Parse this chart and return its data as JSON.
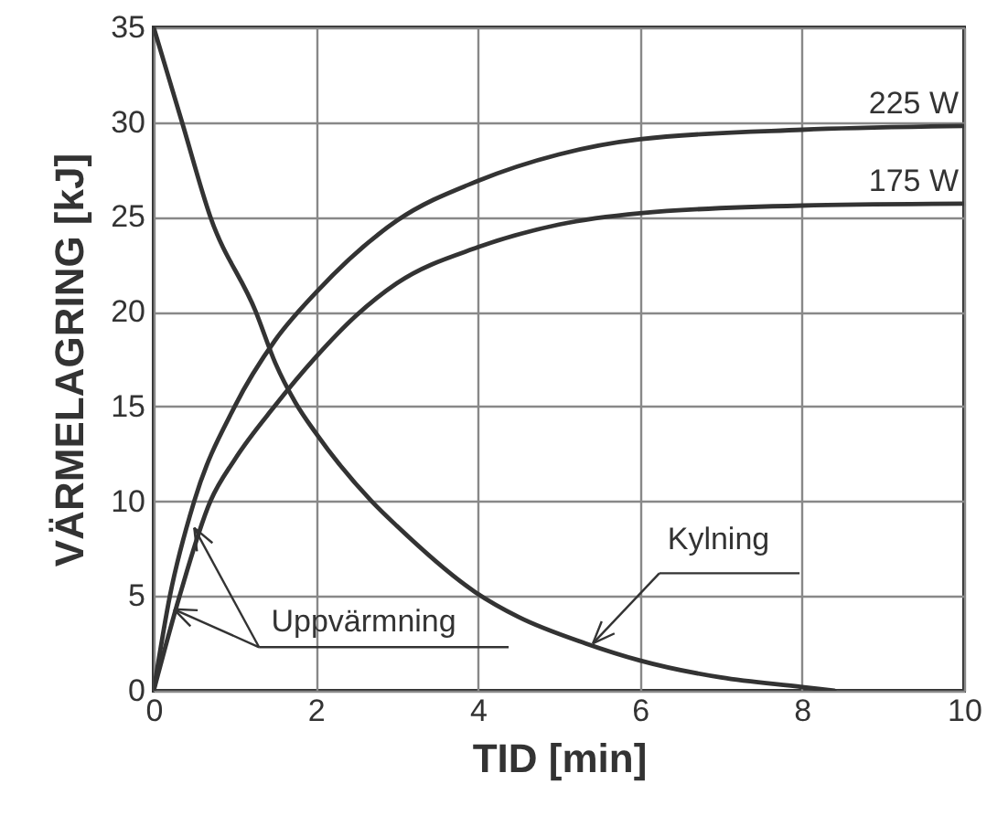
{
  "chart_data": {
    "type": "line",
    "xlabel": "TID [min]",
    "ylabel": "VÄRMELAGRING [kJ]",
    "xlim": [
      0,
      10
    ],
    "xticks": [
      0,
      2,
      4,
      6,
      8,
      10
    ],
    "ylim": [
      0,
      35
    ],
    "yticks": [
      0,
      5,
      10,
      15,
      20,
      25,
      30,
      35
    ],
    "grid": true,
    "series": [
      {
        "name": "225 W",
        "color": "#333333",
        "x": [
          0,
          0.2,
          0.5,
          1.0,
          1.5,
          2.0,
          3.0,
          4.0,
          5.0,
          6.0,
          8.0,
          10.0
        ],
        "values": [
          0,
          5,
          10,
          15,
          18.5,
          21,
          24.8,
          26.9,
          28.3,
          29.1,
          29.6,
          29.8
        ]
      },
      {
        "name": "175 W",
        "color": "#333333",
        "x": [
          0,
          0.32,
          0.7,
          1.0,
          1.49,
          2.0,
          2.5,
          3.0,
          4.0,
          5.0,
          6.0,
          8.0,
          10.0
        ],
        "values": [
          0,
          5,
          10,
          12.2,
          15,
          17.6,
          19.8,
          21.5,
          23.4,
          24.6,
          25.2,
          25.6,
          25.7
        ]
      },
      {
        "color": "#333333",
        "x": [
          0,
          0.35,
          0.7,
          1.26,
          1.5,
          1.75,
          2.0,
          2.69,
          3.0,
          3.97,
          4.5,
          5.33,
          6.0,
          7.0,
          8.0,
          8.4
        ],
        "values": [
          35,
          30,
          25,
          20,
          17.3,
          15.2,
          13.6,
          10,
          8.7,
          5.2,
          3.9,
          2.5,
          1.6,
          0.7,
          0.2,
          0
        ]
      }
    ],
    "annotations": [
      {
        "text": "Uppvärmning",
        "x": 0.5,
        "y": 8.6
      },
      {
        "text": "Kylning",
        "x": 5.42,
        "y": 2.5
      }
    ]
  }
}
